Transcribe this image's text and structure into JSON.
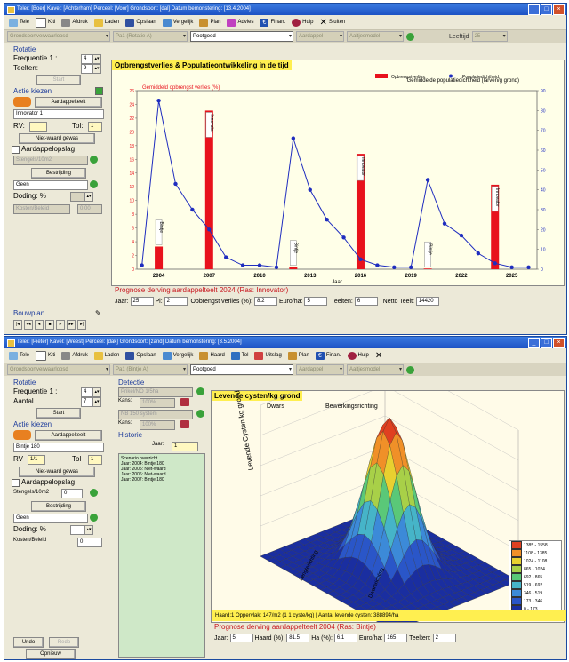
{
  "window1": {
    "title": "Teler: [Boer] Kavel: [Achterham] Perceel: [Voor] Grondsoort: [dal] Datum bemonstering: [13.4.2004]",
    "toolbar": [
      "Tele",
      "Kiti",
      "Afdruk",
      "Laden",
      "Opslaan",
      "Vergelijk",
      "Plan",
      "Advies",
      "Finan.",
      "Hulp",
      "Sluiten"
    ],
    "filters": [
      "Grondsoortverwaarloosd",
      "Pa1 (Rotatie A)",
      "Pootgoed",
      "Aardappel",
      "Aaltjesmodel"
    ],
    "leeftijd_label": "Leeftijd",
    "leeftijd_value": "25",
    "left": {
      "rotatie": "Rotatie",
      "frequentie": "Frequentie 1 :",
      "freq_value": "4",
      "teelten": "Teelten:",
      "teelten_value": "9",
      "start_btn": "Start",
      "actie": "Actie kiezen",
      "aardappel_btn": "Aardappelteelt",
      "ras": "Innovator 1",
      "rv": "RV:",
      "tol": "Tol:",
      "tol_value": "1",
      "nietwaard_btn": "Niet-waard gewas",
      "aardappelopslag": "Aardappelopslag",
      "stengels": "Stengels/10m2",
      "bestrijding_btn": "Bestrijding",
      "geen": "Geen",
      "doding": "Doding: %",
      "kosten_label": "Kosten/Beleid",
      "kosten_value": "0.00",
      "bouwplan": "Bouwplan"
    },
    "chart_title": "Opbrengstverlies & Populatieontwikkeling in de tijd",
    "status": {
      "prognose": "Prognose derving aardappelteelt 2024 (Ras: Innovator)",
      "jaar_label": "Jaar:",
      "jaar": "25",
      "pi_label": "Pi:",
      "pi": "2",
      "opbr_label": "Opbrengst verlies (%):",
      "opbr": "8.2",
      "euro_label": "Euro/ha:",
      "euro": "5",
      "teelten_label": "Teelten:",
      "teelten": "6",
      "netto_label": "Netto Teelt:",
      "netto": "14420"
    }
  },
  "chart_data": {
    "type": "bar",
    "title": "Opbrengstverlies & Populatieontwikkeling in de tijd",
    "xlabel": "Jaar",
    "ylabel_left": "Gemiddeld opbrengst verlies (%)",
    "ylabel_right": "Gemiddelde populatiedichtheid (larven/g grond)",
    "legend": [
      "Opbrengstverlies",
      "Populatiedichtheid"
    ],
    "x_ticks": [
      2004,
      2007,
      2010,
      2013,
      2016,
      2019,
      2022,
      2025
    ],
    "ylim_left": [
      0,
      26
    ],
    "ylim_right": [
      0,
      90
    ],
    "bars": [
      {
        "year": 2004,
        "value": 3.3,
        "label": "Bintje"
      },
      {
        "year": 2007,
        "value": 23.1,
        "label": "Innovator"
      },
      {
        "year": 2012,
        "value": 0.3,
        "label": "Bintje"
      },
      {
        "year": 2016,
        "value": 16.8,
        "label": "Innovator"
      },
      {
        "year": 2020,
        "value": 0.1,
        "label": "Bintje"
      },
      {
        "year": 2024,
        "value": 12.3,
        "label": "Innovator"
      }
    ],
    "series": [
      {
        "name": "Populatiedichtheid",
        "x": [
          2003,
          2004,
          2005,
          2006,
          2007,
          2008,
          2009,
          2010,
          2011,
          2012,
          2013,
          2014,
          2015,
          2016,
          2017,
          2018,
          2019,
          2020,
          2021,
          2022,
          2023,
          2024,
          2025,
          2026
        ],
        "values": [
          2,
          85,
          43,
          30,
          20,
          6,
          2,
          2,
          1,
          66,
          40,
          25,
          16,
          5,
          2,
          1,
          1,
          45,
          23,
          17,
          8,
          3,
          1,
          1
        ]
      }
    ]
  },
  "window2": {
    "title": "Teler: [Pieter] Kavel: [Weest] Perceel: [dak] Grondsoort: [zand] Datum bemonstering: [3.5.2004]",
    "toolbar": [
      "Tele",
      "Kiti",
      "Afdruk",
      "Laden",
      "Opslaan",
      "Vergelijk",
      "Haard",
      "Tol",
      "Uitslag",
      "Plan",
      "Finan.",
      "Hulp"
    ],
    "filters": [
      "Grondsoortverwaarloosd",
      "Pa1 (Bintje A)",
      "Pootgoed",
      "Aardappel",
      "Aaltjesmodel"
    ],
    "left": {
      "rotatie": "Rotatie",
      "frequentie": "Frequentie 1 :",
      "freq_value": "4",
      "aantal": "Aantal",
      "aantal_value": "7",
      "start_btn": "Start",
      "actie": "Actie kiezen",
      "aardappel_btn": "Aardappelteelt",
      "ras": "Bintje 180",
      "rv": "RV",
      "rv_value": "1/1",
      "tol": "Tol",
      "tol_value": "1",
      "nietwaard_btn": "Niet-waard gewas",
      "aardappelopslag": "Aardappelopslag",
      "stengels": "Stengels/10m2",
      "stengels_value": "0",
      "bestrijding_btn": "Bestrijding",
      "geen": "Geen",
      "doding": "Doding: %",
      "kosten_label": "Kosten/Beleid",
      "kosten_value": "0",
      "undo_btn": "Undo",
      "redo_btn": "Redo",
      "opnieuw_btn": "Opnieuw"
    },
    "detectie": {
      "title": "Detectie",
      "item1": "Prikel/NO 1/5ha",
      "kans_label": "Kans:",
      "kans1": "100%",
      "item2": "NB 150 system",
      "kans2": "100%",
      "historie": "Historie",
      "jaar_label": "Jaar:",
      "jaar_value": "1",
      "hist": "Scenario overzicht\nJaar: 2004: Bintje 180\nJaar: 2005: Niet-waard\nJaar: 2006: Niet-waard\nJaar: 2007: Bintje 180"
    },
    "chart_title": "Levende cysten/kg grond",
    "surface": {
      "label_dwars": "Dwars",
      "label_bewerking": "Bewerkingsrichting",
      "zlabel": "Levende Cysten/kg grond",
      "xlabel": "Lengterichting",
      "ylabel": "Dwarsrichting",
      "legend": [
        "1385 - 1558",
        "1108 - 1385",
        "1024 - 1108",
        "865 - 1024",
        "692 - 865",
        "519 - 692",
        "346 - 519",
        "173 - 346",
        "0 - 173"
      ]
    },
    "haard": "Haard:1 Oppervlak: 147/m2 (1 1 cyste/kg) | Aantal levende cysten: 388894/ha",
    "status": {
      "prognose": "Prognose derving aardappelteelt 2004 (Ras: Bintje)",
      "jaar_label": "Jaar:",
      "jaar": "5",
      "haard_label": "Haard (%):",
      "haard": "81.5",
      "ha_label": "Ha (%):",
      "ha": "6.1",
      "euro_label": "Euro/ha:",
      "euro": "165",
      "teelten_label": "Teelten:",
      "teelten": "2"
    }
  },
  "colors": {
    "bar": "#e8121c",
    "line": "#1f2dbf",
    "plot_bg": "#ffffe8",
    "title_bg": "#ffef50",
    "green_hist": "#cfe8c8"
  }
}
